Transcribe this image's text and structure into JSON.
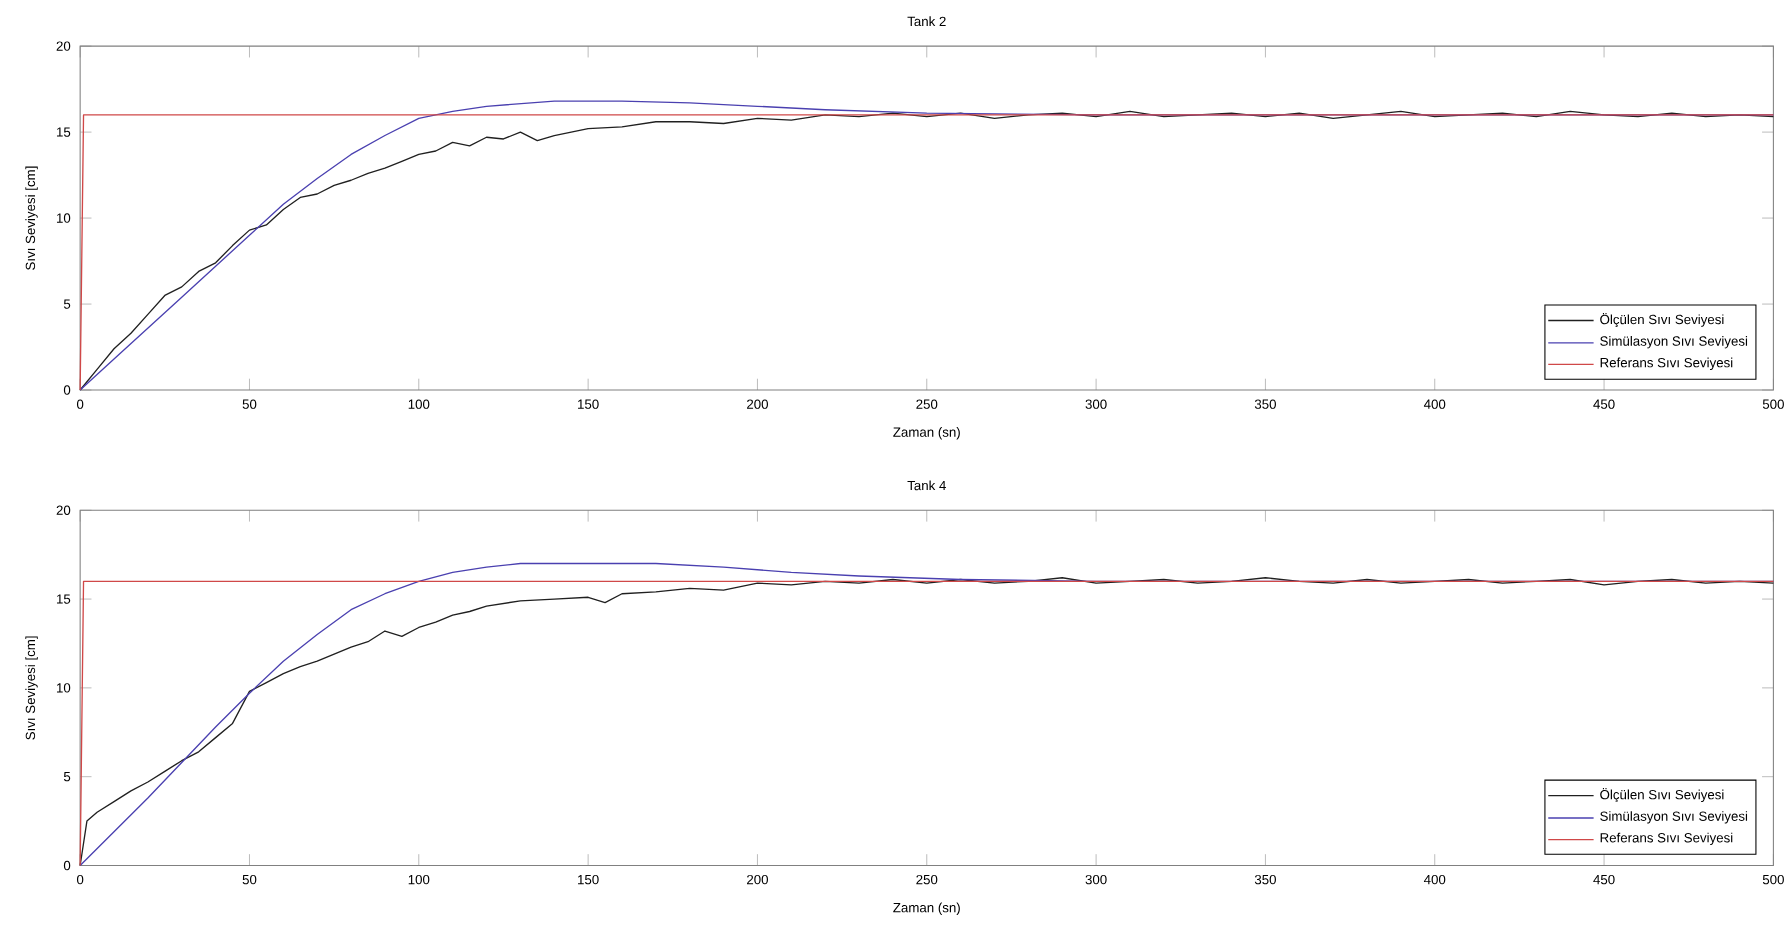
{
  "chart_data": [
    {
      "type": "line",
      "title": "Tank 2",
      "xlabel": "Zaman (sn)",
      "ylabel": "Sıvı Seviyesi [cm]",
      "xlim": [
        0,
        500
      ],
      "xticks": [
        0,
        50,
        100,
        150,
        200,
        250,
        300,
        350,
        400,
        450,
        500
      ],
      "ylim": [
        0,
        20
      ],
      "yticks": [
        0,
        5,
        10,
        15,
        20
      ],
      "legend": "bottom right",
      "marker": "none",
      "line_style": "solid",
      "series": [
        {
          "name": "Ölçülen Sıvı Seviyesi",
          "color": "#202020",
          "x": [
            0,
            5,
            10,
            15,
            20,
            25,
            30,
            35,
            40,
            45,
            50,
            55,
            60,
            65,
            70,
            75,
            80,
            85,
            90,
            95,
            100,
            105,
            110,
            115,
            120,
            125,
            130,
            135,
            140,
            145,
            150,
            160,
            170,
            180,
            190,
            200,
            210,
            220,
            230,
            240,
            250,
            260,
            270,
            280,
            290,
            300,
            310,
            320,
            330,
            340,
            350,
            360,
            370,
            380,
            390,
            400,
            410,
            420,
            430,
            440,
            450,
            460,
            470,
            480,
            490,
            500
          ],
          "values": [
            0,
            1.2,
            2.4,
            3.3,
            4.4,
            5.5,
            6.0,
            6.9,
            7.4,
            8.4,
            9.3,
            9.6,
            10.5,
            11.2,
            11.4,
            11.9,
            12.2,
            12.6,
            12.9,
            13.3,
            13.7,
            13.9,
            14.4,
            14.2,
            14.7,
            14.6,
            15.0,
            14.5,
            14.8,
            15.0,
            15.2,
            15.3,
            15.6,
            15.6,
            15.5,
            15.8,
            15.7,
            16.0,
            15.9,
            16.1,
            15.9,
            16.1,
            15.8,
            16.0,
            16.1,
            15.9,
            16.2,
            15.9,
            16.0,
            16.1,
            15.9,
            16.1,
            15.8,
            16.0,
            16.2,
            15.9,
            16.0,
            16.1,
            15.9,
            16.2,
            16.0,
            15.9,
            16.1,
            15.9,
            16.0,
            15.9
          ]
        },
        {
          "name": "Simülasyon Sıvı Seviyesi",
          "color": "#4a40b0",
          "x": [
            0,
            10,
            20,
            30,
            40,
            50,
            60,
            70,
            80,
            90,
            100,
            110,
            120,
            140,
            160,
            180,
            200,
            220,
            250,
            300,
            500
          ],
          "values": [
            0,
            1.8,
            3.6,
            5.4,
            7.2,
            9.0,
            10.8,
            12.3,
            13.7,
            14.8,
            15.8,
            16.2,
            16.5,
            16.8,
            16.8,
            16.7,
            16.5,
            16.3,
            16.1,
            16.0,
            16.0
          ]
        },
        {
          "name": "Referans Sıvı Seviyesi",
          "color": "#d04848",
          "x": [
            0,
            1,
            500
          ],
          "values": [
            0,
            16,
            16
          ]
        }
      ]
    },
    {
      "type": "line",
      "title": "Tank 4",
      "xlabel": "Zaman (sn)",
      "ylabel": "Sıvı Seviyesi [cm]",
      "xlim": [
        0,
        500
      ],
      "xticks": [
        0,
        50,
        100,
        150,
        200,
        250,
        300,
        350,
        400,
        450,
        500
      ],
      "ylim": [
        0,
        20
      ],
      "yticks": [
        0,
        5,
        10,
        15,
        20
      ],
      "legend": "bottom right",
      "marker": "none",
      "line_style": "solid",
      "series": [
        {
          "name": "Ölçülen Sıvı Seviyesi",
          "color": "#202020",
          "x": [
            0,
            2,
            5,
            10,
            15,
            20,
            25,
            30,
            35,
            40,
            45,
            50,
            55,
            60,
            65,
            70,
            75,
            80,
            85,
            90,
            95,
            100,
            105,
            110,
            115,
            120,
            130,
            140,
            150,
            155,
            160,
            170,
            180,
            190,
            200,
            210,
            220,
            230,
            240,
            250,
            260,
            270,
            280,
            290,
            300,
            310,
            320,
            330,
            340,
            350,
            360,
            370,
            380,
            390,
            400,
            410,
            420,
            430,
            440,
            450,
            460,
            470,
            480,
            490,
            500
          ],
          "values": [
            0,
            2.5,
            3.0,
            3.6,
            4.2,
            4.7,
            5.3,
            5.9,
            6.4,
            7.2,
            8.0,
            9.8,
            10.3,
            10.8,
            11.2,
            11.5,
            11.9,
            12.3,
            12.6,
            13.2,
            12.9,
            13.4,
            13.7,
            14.1,
            14.3,
            14.6,
            14.9,
            15.0,
            15.1,
            14.8,
            15.3,
            15.4,
            15.6,
            15.5,
            15.9,
            15.8,
            16.0,
            15.9,
            16.1,
            15.9,
            16.1,
            15.9,
            16.0,
            16.2,
            15.9,
            16.0,
            16.1,
            15.9,
            16.0,
            16.2,
            16.0,
            15.9,
            16.1,
            15.9,
            16.0,
            16.1,
            15.9,
            16.0,
            16.1,
            15.8,
            16.0,
            16.1,
            15.9,
            16.0,
            15.9
          ]
        },
        {
          "name": "Simülasyon Sıvı Seviyesi",
          "color": "#4a40b0",
          "x": [
            0,
            10,
            20,
            30,
            40,
            50,
            60,
            70,
            80,
            90,
            100,
            110,
            120,
            130,
            170,
            190,
            210,
            230,
            260,
            300,
            500
          ],
          "values": [
            0,
            1.9,
            3.8,
            5.8,
            7.8,
            9.7,
            11.5,
            13.0,
            14.4,
            15.3,
            16.0,
            16.5,
            16.8,
            17.0,
            17.0,
            16.8,
            16.5,
            16.3,
            16.1,
            16.0,
            16.0
          ]
        },
        {
          "name": "Referans Sıvı Seviyesi",
          "color": "#d04848",
          "x": [
            0,
            1,
            500
          ],
          "values": [
            0,
            16,
            16
          ]
        }
      ]
    }
  ]
}
